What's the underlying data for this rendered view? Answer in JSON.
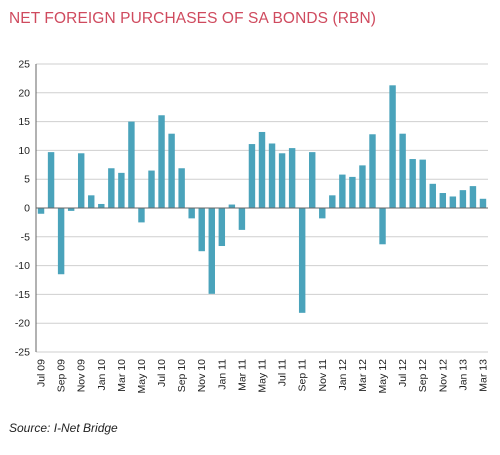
{
  "page": {
    "title": "NET FOREIGN PURCHASES OF SA BONDS (RBN)",
    "source": "Source: I-Net Bridge"
  },
  "colors": {
    "title": "#cf4a5e",
    "bar": "#4aa3bb",
    "grid": "#cfcfcf",
    "axis": "#666666"
  },
  "chart_data": {
    "type": "bar",
    "title": "NET FOREIGN PURCHASES OF SA BONDS (RBN)",
    "xlabel": "",
    "ylabel": "",
    "ylim": [
      -25,
      25
    ],
    "yticks": [
      25,
      20,
      15,
      10,
      5,
      0,
      -5,
      -10,
      -15,
      -20,
      -25
    ],
    "grid": true,
    "legend": "none",
    "categories": [
      "Jul 09",
      "Aug 09",
      "Sep 09",
      "Oct 09",
      "Nov 09",
      "Dec 09",
      "Jan 10",
      "Feb 10",
      "Mar 10",
      "Apr 10",
      "May 10",
      "Jun 10",
      "Jul 10",
      "Aug 10",
      "Sep 10",
      "Oct 10",
      "Nov 10",
      "Dec 10",
      "Jan 11",
      "Feb 11",
      "Mar 11",
      "Apr 11",
      "May 11",
      "Jun 11",
      "Jul 11",
      "Aug 11",
      "Sep 11",
      "Oct 11",
      "Nov 11",
      "Dec 11",
      "Jan 12",
      "Feb 12",
      "Mar 12",
      "Apr 12",
      "May 12",
      "Jun 12",
      "Jul 12",
      "Aug 12",
      "Sep 12",
      "Oct 12",
      "Nov 12",
      "Dec 12",
      "Jan 13",
      "Feb 13",
      "Mar 13"
    ],
    "xtick_labels": [
      "Jul 09",
      "",
      "Sep 09",
      "",
      "Nov 09",
      "",
      "Jan 10",
      "",
      "Mar 10",
      "",
      "May 10",
      "",
      "Jul 10",
      "",
      "Sep 10",
      "",
      "Nov 10",
      "",
      "Jan 11",
      "",
      "Mar 11",
      "",
      "May 11",
      "",
      "Jul 11",
      "",
      "Sep 11",
      "",
      "Nov 11",
      "",
      "Jan 12",
      "",
      "Mar 12",
      "",
      "May 12",
      "",
      "Jul 12",
      "",
      "Sep 12",
      "",
      "Nov 12",
      "",
      "Jan 13",
      "",
      "Mar 13"
    ],
    "values": [
      -1.0,
      9.7,
      -11.5,
      -0.5,
      9.5,
      2.2,
      0.7,
      6.9,
      6.1,
      15.0,
      -2.5,
      6.5,
      16.1,
      12.9,
      6.9,
      -1.8,
      -7.5,
      -14.9,
      -6.6,
      0.6,
      -3.8,
      11.1,
      13.2,
      11.2,
      9.5,
      10.4,
      -18.2,
      9.7,
      -1.8,
      2.2,
      5.8,
      5.4,
      7.4,
      12.8,
      -6.3,
      21.3,
      12.9,
      8.5,
      8.4,
      4.2,
      2.6,
      2.0,
      3.1,
      3.8,
      1.6
    ]
  }
}
